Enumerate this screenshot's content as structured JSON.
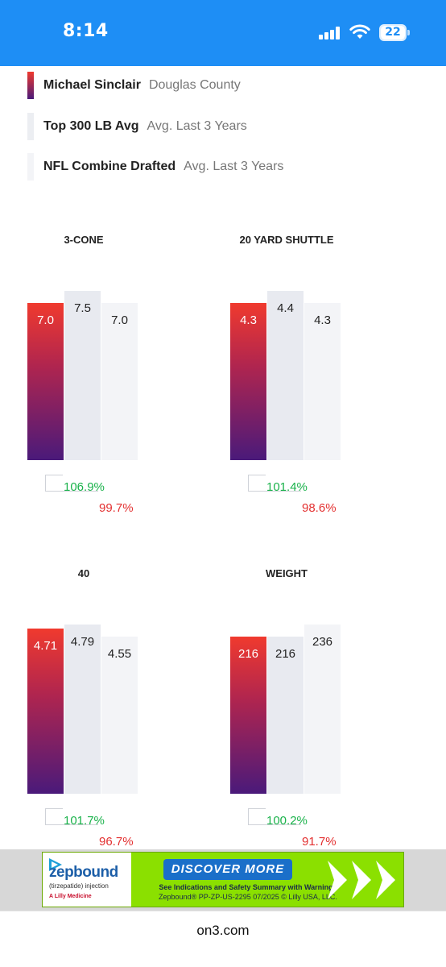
{
  "status": {
    "time": "8:14",
    "battery": "22"
  },
  "legend": [
    {
      "name": "Michael Sinclair",
      "desc": "Douglas County"
    },
    {
      "name": "Top 300 LB Avg",
      "desc": "Avg. Last 3 Years"
    },
    {
      "name": "NFL Combine Drafted",
      "desc": "Avg. Last 3 Years"
    }
  ],
  "colors": {
    "accent": "#1e8ef5",
    "player_gradient_top": "#f03a2e",
    "player_gradient_bottom": "#4a1a7a",
    "top300": "#e8eaf0",
    "nfl": "#f3f4f7",
    "positive": "#19b24a",
    "negative": "#e33030"
  },
  "chart_data": [
    {
      "type": "bar",
      "title": "3-CONE",
      "categories": [
        "Michael Sinclair",
        "Top 300 LB Avg",
        "NFL Combine Drafted"
      ],
      "values": [
        7.0,
        7.5,
        7.0
      ],
      "labels": [
        "7.0",
        "7.5",
        "7.0"
      ],
      "comparisons": [
        "106.9%",
        "99.7%"
      ]
    },
    {
      "type": "bar",
      "title": "20 YARD SHUTTLE",
      "categories": [
        "Michael Sinclair",
        "Top 300 LB Avg",
        "NFL Combine Drafted"
      ],
      "values": [
        4.3,
        4.4,
        4.3
      ],
      "labels": [
        "4.3",
        "4.4",
        "4.3"
      ],
      "comparisons": [
        "101.4%",
        "98.6%"
      ]
    },
    {
      "type": "bar",
      "title": "40",
      "categories": [
        "Michael Sinclair",
        "Top 300 LB Avg",
        "NFL Combine Drafted"
      ],
      "values": [
        4.71,
        4.79,
        4.55
      ],
      "labels": [
        "4.71",
        "4.79",
        "4.55"
      ],
      "comparisons": [
        "101.7%",
        "96.7%"
      ]
    },
    {
      "type": "bar",
      "title": "WEIGHT",
      "categories": [
        "Michael Sinclair",
        "Top 300 LB Avg",
        "NFL Combine Drafted"
      ],
      "values": [
        216,
        216,
        236
      ],
      "labels": [
        "216",
        "216",
        "236"
      ],
      "comparisons": [
        "100.2%",
        "91.7%"
      ]
    }
  ],
  "ad": {
    "brand": "zepbound",
    "brand_sub": "(tirzepatide) injection",
    "maker": "A Lilly Medicine",
    "cta": "DISCOVER MORE",
    "line1": "See Indications and Safety Summary with Warnings",
    "line2": "Zepbound® PP-ZP-US-2295 07/2025 © Lilly USA, LLC."
  },
  "url": "on3.com"
}
